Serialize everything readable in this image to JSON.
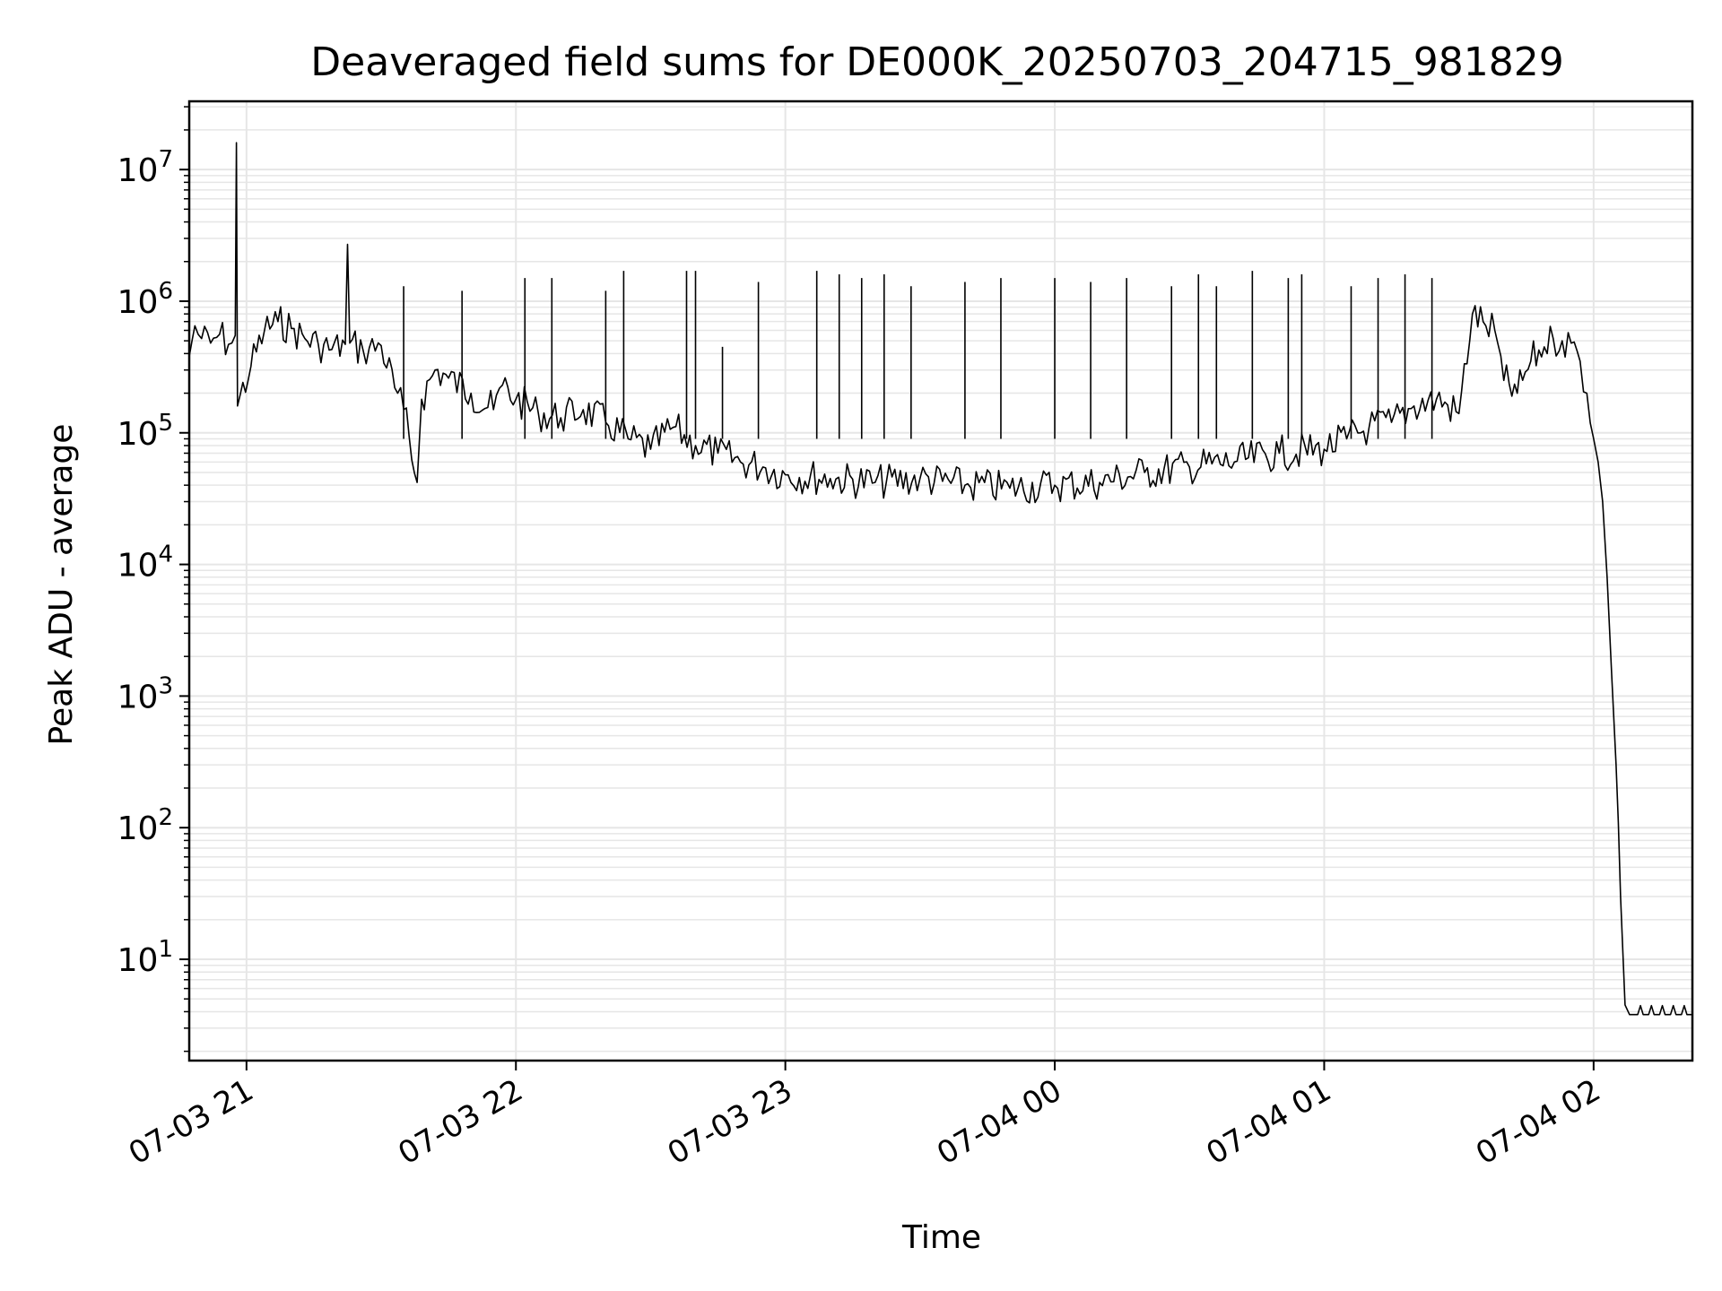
{
  "chart_data": {
    "type": "line",
    "title": "Deaveraged field sums for DE000K_20250703_204715_981829",
    "xlabel": "Time",
    "ylabel": "Peak ADU - average",
    "xlim": [
      "2025-07-03 20:47:15",
      "2025-07-04 02:22:00"
    ],
    "ylim": [
      1.7,
      33000000
    ],
    "yscale": "log",
    "grid": true,
    "line_color": "#000000",
    "x_ticks": [
      {
        "value": "2025-07-03 21:00",
        "label": "07-03 21"
      },
      {
        "value": "2025-07-03 22:00",
        "label": "07-03 22"
      },
      {
        "value": "2025-07-03 23:00",
        "label": "07-03 23"
      },
      {
        "value": "2025-07-04 00:00",
        "label": "07-04 00"
      },
      {
        "value": "2025-07-04 01:00",
        "label": "07-04 01"
      },
      {
        "value": "2025-07-04 02:00",
        "label": "07-04 02"
      }
    ],
    "y_ticks": [
      {
        "value": 10,
        "base": "10",
        "exp": "1"
      },
      {
        "value": 100,
        "base": "10",
        "exp": "2"
      },
      {
        "value": 1000,
        "base": "10",
        "exp": "3"
      },
      {
        "value": 10000,
        "base": "10",
        "exp": "4"
      },
      {
        "value": 100000,
        "base": "10",
        "exp": "5"
      },
      {
        "value": 1000000,
        "base": "10",
        "exp": "6"
      },
      {
        "value": 10000000,
        "base": "10",
        "exp": "7"
      }
    ],
    "series": [
      {
        "x": [
          "2025-07-03 20:47:15",
          "2025-07-03 20:48:30",
          "2025-07-03 20:50:00",
          "2025-07-03 20:52:00",
          "2025-07-03 20:54:00",
          "2025-07-03 20:56:00",
          "2025-07-03 20:57:30",
          "2025-07-03 20:57:45",
          "2025-07-03 20:58:00",
          "2025-07-03 21:01:00",
          "2025-07-03 21:04:00",
          "2025-07-03 21:07:00",
          "2025-07-03 21:10:00",
          "2025-07-03 21:13:00",
          "2025-07-03 21:16:00",
          "2025-07-03 21:19:00",
          "2025-07-03 21:22:00",
          "2025-07-03 21:22:30",
          "2025-07-03 21:23:00",
          "2025-07-03 21:26:00",
          "2025-07-03 21:30:00",
          "2025-07-03 21:33:00",
          "2025-07-03 21:35:00",
          "2025-07-03 21:38:00",
          "2025-07-03 21:39:00",
          "2025-07-03 21:42:00",
          "2025-07-03 21:45:00",
          "2025-07-03 21:50:00",
          "2025-07-03 21:55:00",
          "2025-07-03 21:57:00",
          "2025-07-03 22:00:00",
          "2025-07-03 22:05:00",
          "2025-07-03 22:10:00",
          "2025-07-03 22:15:00",
          "2025-07-03 22:20:00",
          "2025-07-03 22:25:00",
          "2025-07-03 22:30:00",
          "2025-07-03 22:35:00",
          "2025-07-03 22:40:00",
          "2025-07-03 22:45:00",
          "2025-07-03 22:50:00",
          "2025-07-03 22:55:00",
          "2025-07-03 23:00:00",
          "2025-07-03 23:10:00",
          "2025-07-03 23:20:00",
          "2025-07-03 23:30:00",
          "2025-07-03 23:40:00",
          "2025-07-03 23:50:00",
          "2025-07-04 00:00:00",
          "2025-07-04 00:10:00",
          "2025-07-04 00:20:00",
          "2025-07-04 00:30:00",
          "2025-07-04 00:40:00",
          "2025-07-04 00:50:00",
          "2025-07-04 01:00:00",
          "2025-07-04 01:05:00",
          "2025-07-04 01:10:00",
          "2025-07-04 01:15:00",
          "2025-07-04 01:20:00",
          "2025-07-04 01:25:00",
          "2025-07-04 01:30:00",
          "2025-07-04 01:33:00",
          "2025-07-04 01:36:00",
          "2025-07-04 01:38:00",
          "2025-07-04 01:40:00",
          "2025-07-04 01:43:00",
          "2025-07-04 01:46:00",
          "2025-07-04 01:49:00",
          "2025-07-04 01:51:00",
          "2025-07-04 01:53:00",
          "2025-07-04 01:55:00",
          "2025-07-04 01:57:00",
          "2025-07-04 01:58:30",
          "2025-07-04 02:00:00",
          "2025-07-04 02:01:00",
          "2025-07-04 02:02:00",
          "2025-07-04 02:03:00",
          "2025-07-04 02:04:00",
          "2025-07-04 02:05:00",
          "2025-07-04 02:05:30",
          "2025-07-04 02:06:00",
          "2025-07-04 02:07:00",
          "2025-07-04 02:08:00",
          "2025-07-04 02:22:00"
        ],
        "y": [
          380000,
          650000,
          520000,
          480000,
          560000,
          470000,
          550000,
          16000000,
          160000,
          320000,
          600000,
          700000,
          620000,
          520000,
          470000,
          430000,
          470000,
          2700000,
          480000,
          420000,
          460000,
          220000,
          150000,
          42000,
          180000,
          300000,
          260000,
          200000,
          150000,
          230000,
          180000,
          140000,
          130000,
          150000,
          120000,
          90000,
          75000,
          110000,
          80000,
          70000,
          60000,
          55000,
          48000,
          45000,
          42000,
          45000,
          40000,
          38000,
          40000,
          42000,
          50000,
          55000,
          60000,
          70000,
          75000,
          90000,
          110000,
          120000,
          160000,
          180000,
          140000,
          800000,
          650000,
          600000,
          250000,
          200000,
          350000,
          450000,
          520000,
          500000,
          480000,
          350000,
          200000,
          90000,
          60000,
          30000,
          8000,
          1500,
          300,
          110,
          30,
          4.5,
          3.8,
          3.8
        ]
      }
    ],
    "spikes": [
      {
        "x": "2025-07-03 21:35:00",
        "y": 1300000
      },
      {
        "x": "2025-07-03 21:48:00",
        "y": 1200000
      },
      {
        "x": "2025-07-03 22:02:00",
        "y": 1500000
      },
      {
        "x": "2025-07-03 22:08:00",
        "y": 1500000
      },
      {
        "x": "2025-07-03 22:20:00",
        "y": 1200000
      },
      {
        "x": "2025-07-03 22:24:00",
        "y": 1700000
      },
      {
        "x": "2025-07-03 22:38:00",
        "y": 1700000
      },
      {
        "x": "2025-07-03 22:40:00",
        "y": 1700000
      },
      {
        "x": "2025-07-03 22:46:00",
        "y": 450000
      },
      {
        "x": "2025-07-03 22:54:00",
        "y": 1400000
      },
      {
        "x": "2025-07-03 23:07:00",
        "y": 1700000
      },
      {
        "x": "2025-07-03 23:12:00",
        "y": 1600000
      },
      {
        "x": "2025-07-03 23:17:00",
        "y": 1500000
      },
      {
        "x": "2025-07-03 23:22:00",
        "y": 1600000
      },
      {
        "x": "2025-07-03 23:28:00",
        "y": 1300000
      },
      {
        "x": "2025-07-03 23:40:00",
        "y": 1400000
      },
      {
        "x": "2025-07-03 23:48:00",
        "y": 1500000
      },
      {
        "x": "2025-07-04 00:00:00",
        "y": 1500000
      },
      {
        "x": "2025-07-04 00:08:00",
        "y": 1400000
      },
      {
        "x": "2025-07-04 00:16:00",
        "y": 1500000
      },
      {
        "x": "2025-07-04 00:26:00",
        "y": 1300000
      },
      {
        "x": "2025-07-04 00:32:00",
        "y": 1600000
      },
      {
        "x": "2025-07-04 00:36:00",
        "y": 1300000
      },
      {
        "x": "2025-07-04 00:44:00",
        "y": 1700000
      },
      {
        "x": "2025-07-04 00:52:00",
        "y": 1500000
      },
      {
        "x": "2025-07-04 00:55:00",
        "y": 1600000
      },
      {
        "x": "2025-07-04 01:06:00",
        "y": 1300000
      },
      {
        "x": "2025-07-04 01:12:00",
        "y": 1500000
      },
      {
        "x": "2025-07-04 01:18:00",
        "y": 1600000
      },
      {
        "x": "2025-07-04 01:24:00",
        "y": 1500000
      }
    ]
  }
}
